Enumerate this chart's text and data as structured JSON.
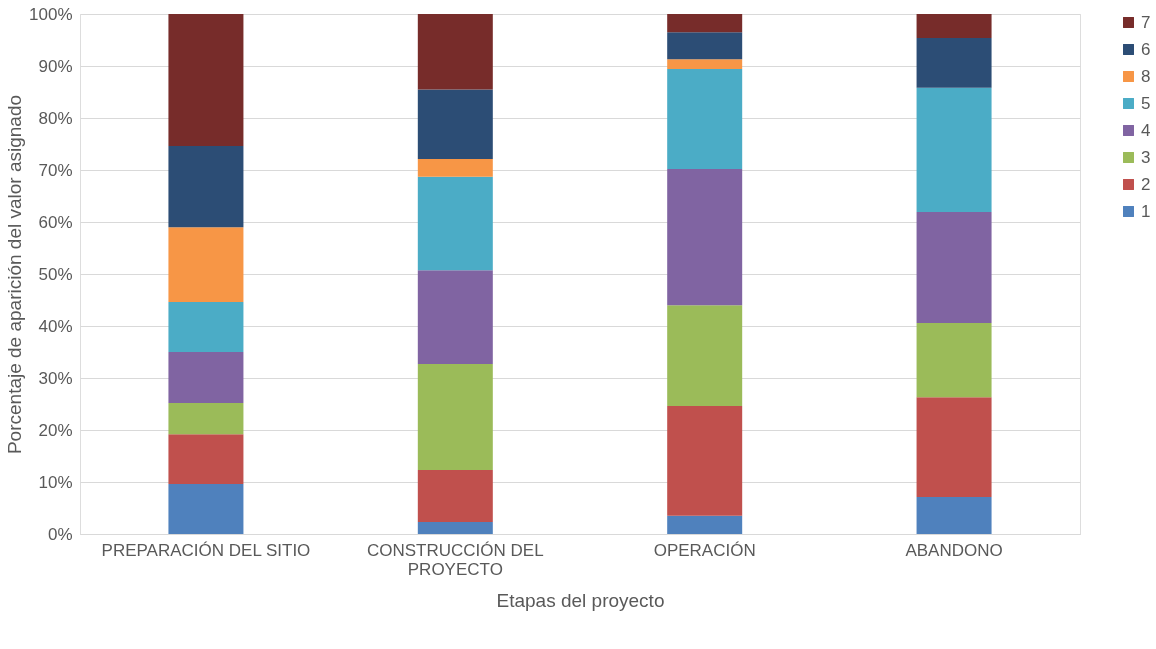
{
  "chart_data": {
    "type": "bar",
    "stacked": true,
    "xlabel": "Etapas del proyecto",
    "ylabel": "Porcentaje de aparición del valor asignado",
    "categories": [
      "PREPARACIÓN DEL SITIO",
      "CONSTRUCCIÓN DEL PROYECTO",
      "OPERACIÓN",
      "ABANDONO"
    ],
    "series": [
      {
        "name": "1",
        "color": "#4f81bd",
        "values": [
          9.6,
          2.3,
          3.5,
          7.1
        ]
      },
      {
        "name": "2",
        "color": "#c0504d",
        "values": [
          9.6,
          10.0,
          21.1,
          19.2
        ]
      },
      {
        "name": "3",
        "color": "#9bbb59",
        "values": [
          6.0,
          20.4,
          19.4,
          14.3
        ]
      },
      {
        "name": "4",
        "color": "#8064a2",
        "values": [
          9.8,
          18.0,
          26.2,
          21.3
        ]
      },
      {
        "name": "5",
        "color": "#4bacc6",
        "values": [
          9.6,
          18.0,
          19.2,
          23.9
        ]
      },
      {
        "name": "8",
        "color": "#f79646",
        "values": [
          14.4,
          3.4,
          1.9,
          null
        ]
      },
      {
        "name": "6",
        "color": "#2c4d75",
        "values": [
          15.6,
          13.4,
          5.2,
          9.6
        ]
      },
      {
        "name": "7",
        "color": "#772c2a",
        "values": [
          25.4,
          14.5,
          3.5,
          4.6
        ]
      }
    ],
    "ylim": [
      0,
      100
    ],
    "yticks": [
      {
        "value": 0,
        "label": "0%"
      },
      {
        "value": 10,
        "label": "10%"
      },
      {
        "value": 20,
        "label": "20%"
      },
      {
        "value": 30,
        "label": "30%"
      },
      {
        "value": 40,
        "label": "40%"
      },
      {
        "value": 50,
        "label": "50%"
      },
      {
        "value": 60,
        "label": "60%"
      },
      {
        "value": 70,
        "label": "70%"
      },
      {
        "value": 80,
        "label": "80%"
      },
      {
        "value": 90,
        "label": "90%"
      },
      {
        "value": 100,
        "label": "100%"
      }
    ],
    "grid": "y",
    "legend": "right"
  }
}
